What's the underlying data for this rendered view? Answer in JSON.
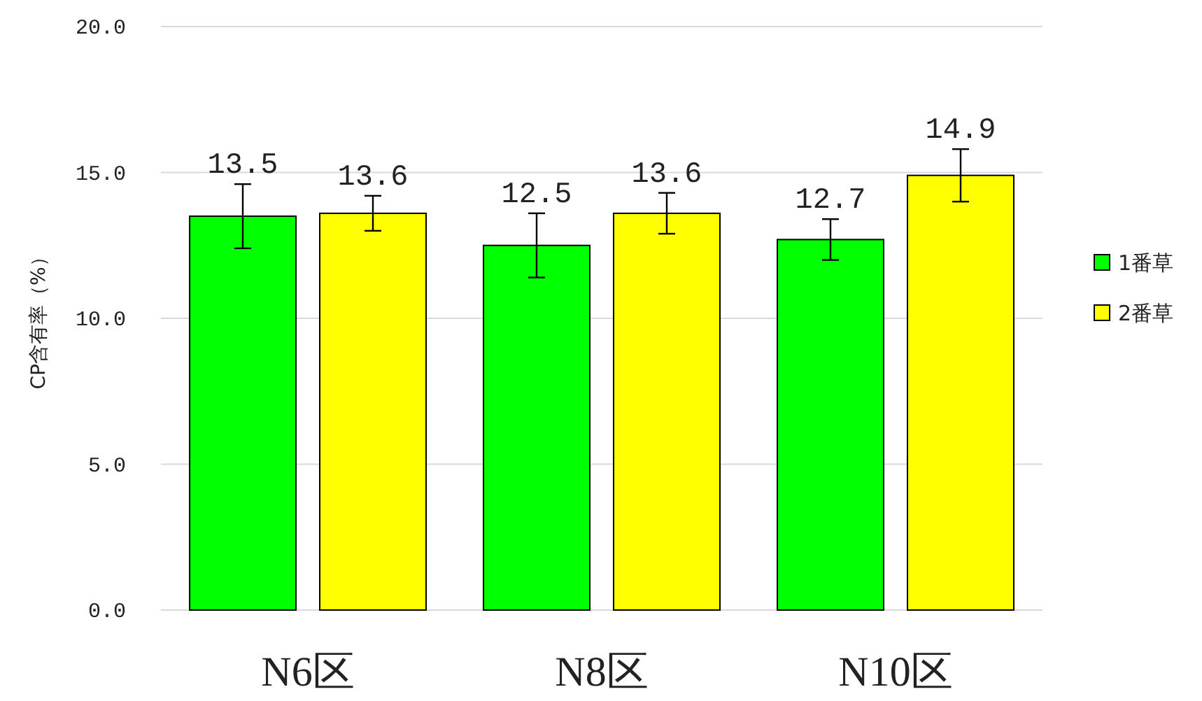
{
  "chart_data": {
    "type": "bar",
    "ylabel": "CP含有率（%）",
    "categories": [
      "N6区",
      "N8区",
      "N10区"
    ],
    "series": [
      {
        "name": "1番草",
        "color": "#00ff00",
        "values": [
          13.5,
          12.5,
          12.7
        ],
        "errors": [
          1.1,
          1.1,
          0.7
        ]
      },
      {
        "name": "2番草",
        "color": "#ffff00",
        "values": [
          13.6,
          13.6,
          14.9
        ],
        "errors": [
          0.6,
          0.7,
          0.9
        ]
      }
    ],
    "ylim": [
      0,
      20
    ],
    "yticks": [
      {
        "value": 0,
        "label": "0.0"
      },
      {
        "value": 5,
        "label": "5.0"
      },
      {
        "value": 10,
        "label": "10.0"
      },
      {
        "value": 15,
        "label": "15.0"
      },
      {
        "value": 20,
        "label": "20.0"
      }
    ],
    "grid": "y",
    "legend": "right",
    "data_labels": true
  }
}
